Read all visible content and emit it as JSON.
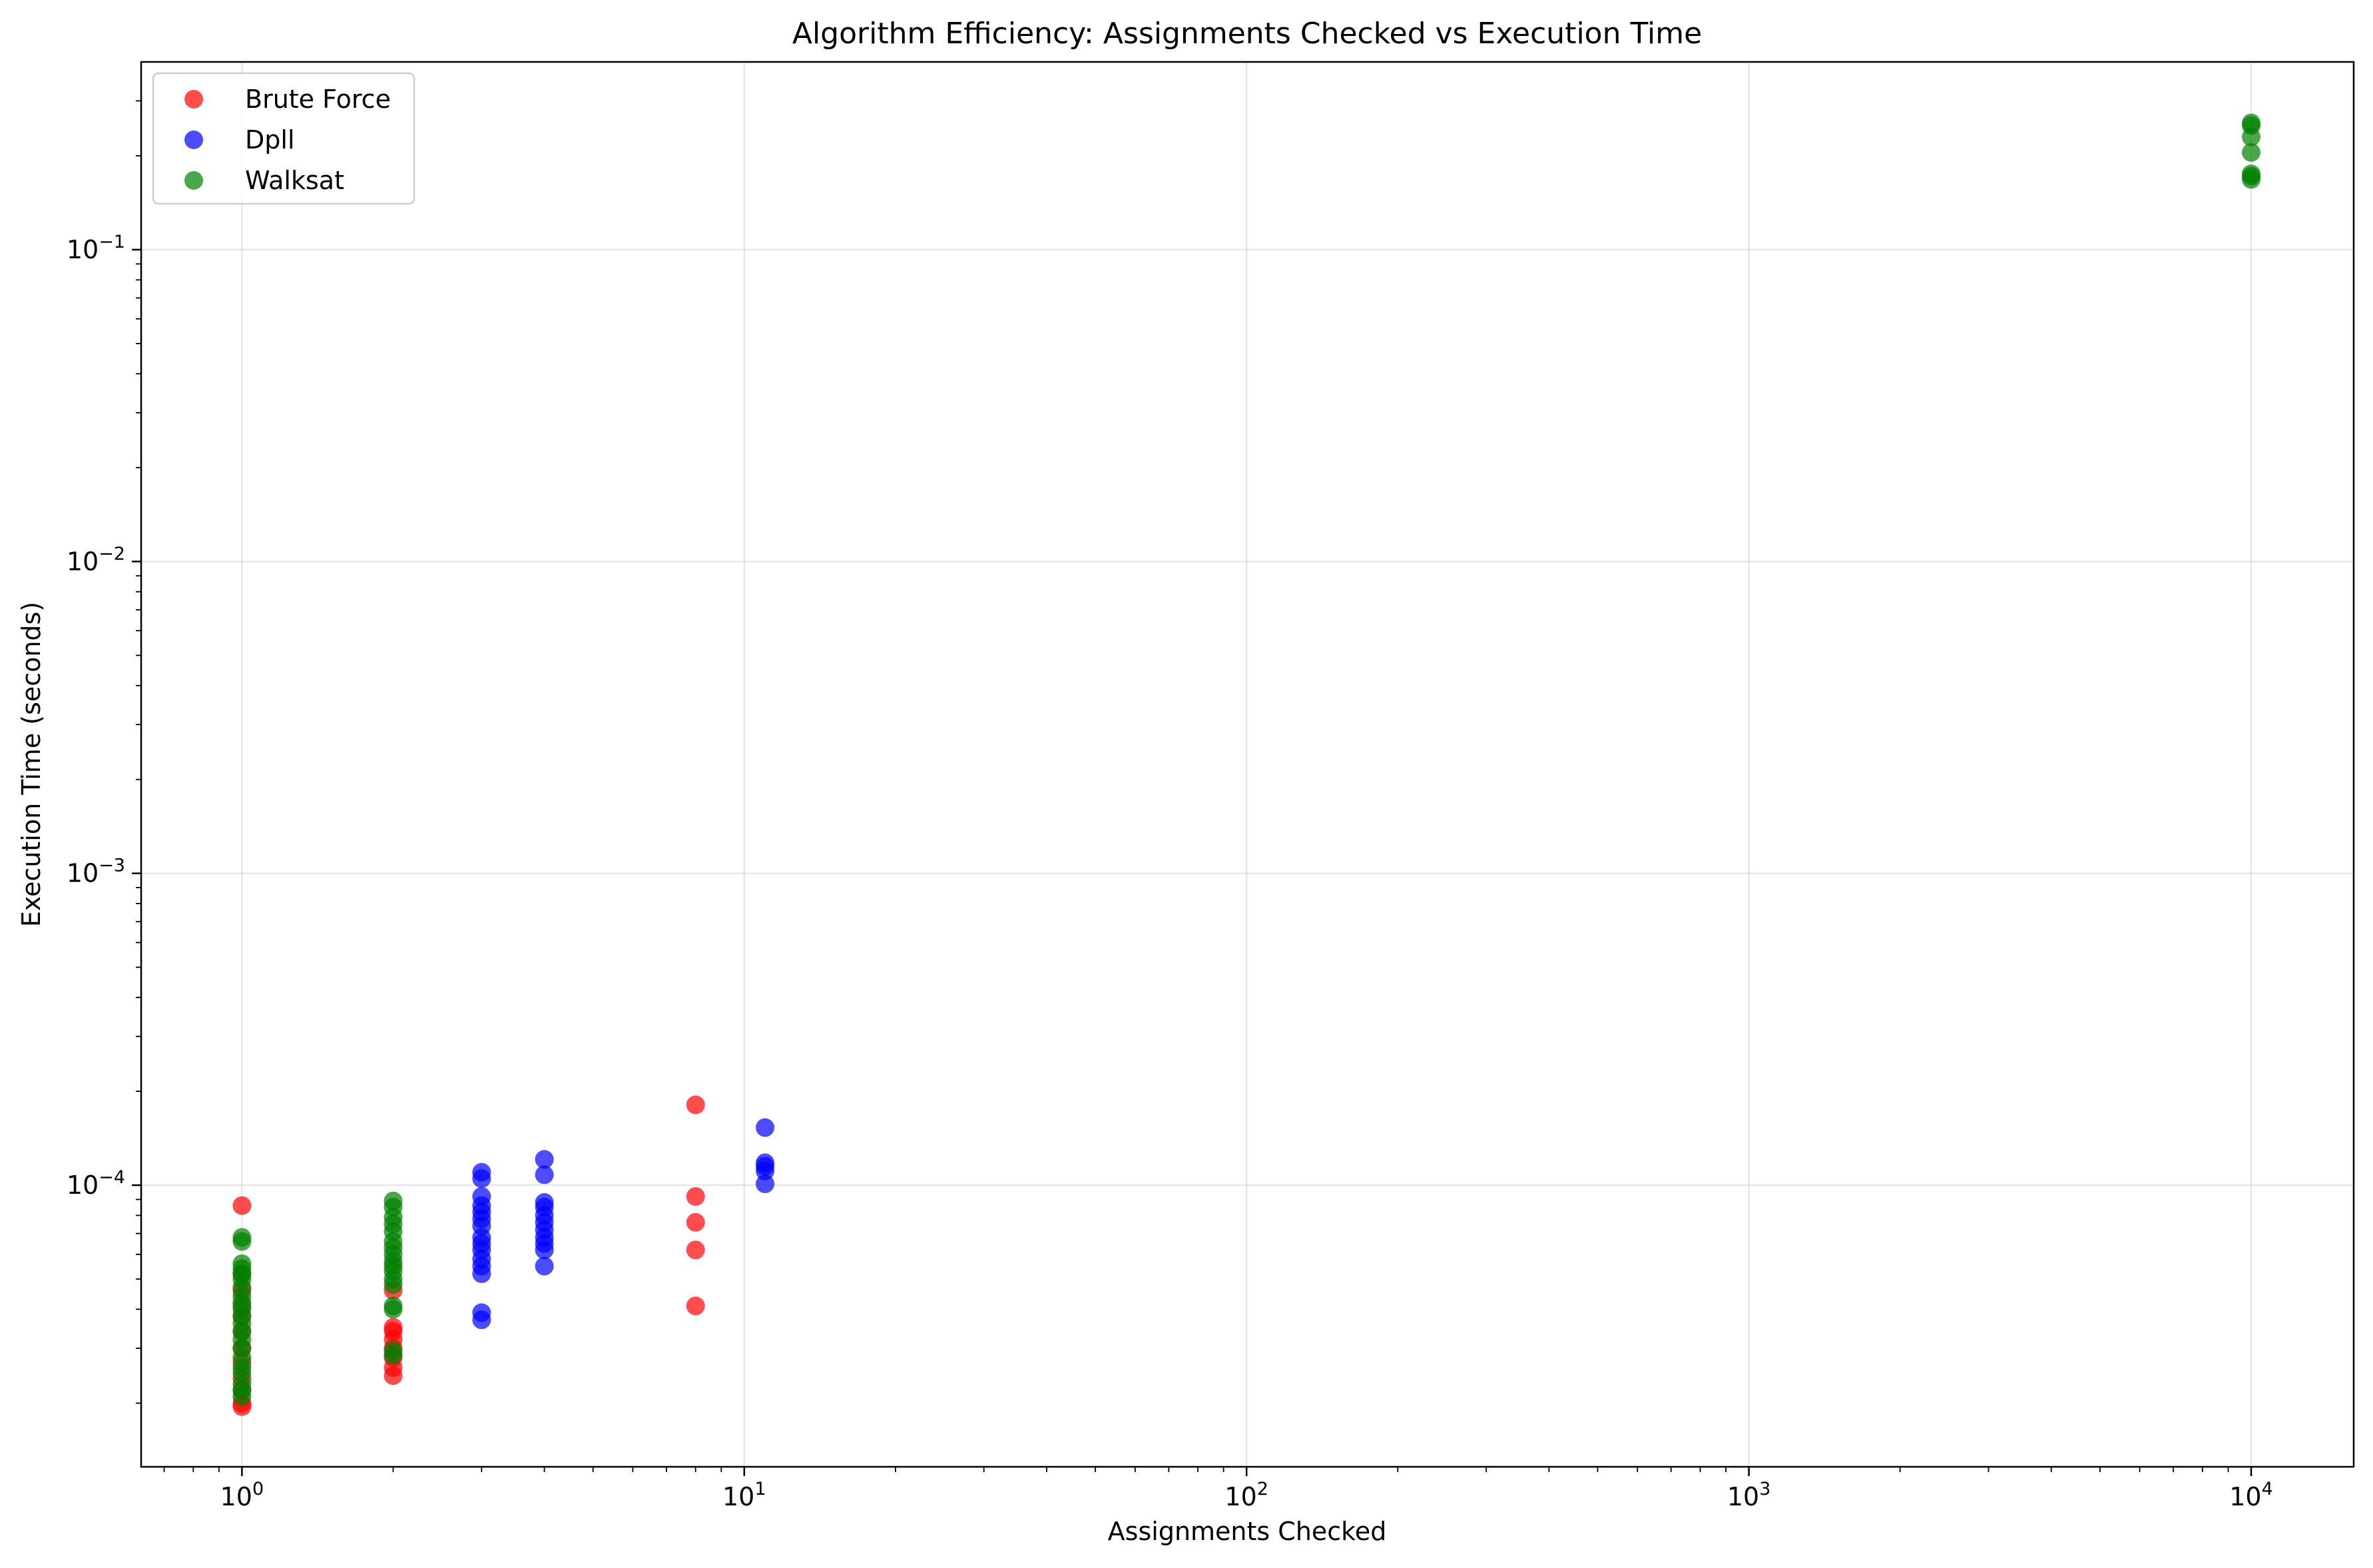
{
  "chart_data": {
    "type": "scatter",
    "title": "Algorithm Efficiency: Assignments Checked vs Execution Time",
    "xlabel": "Assignments Checked",
    "ylabel": "Execution Time (seconds)",
    "xscale": "log",
    "yscale": "log",
    "xlim": [
      0.63,
      16000
    ],
    "ylim": [
      1.25e-05,
      0.4
    ],
    "grid": true,
    "legend_position": "top-left",
    "x_ticks": [
      {
        "value": 1,
        "base": "10",
        "exp": "0"
      },
      {
        "value": 10,
        "base": "10",
        "exp": "1"
      },
      {
        "value": 100,
        "base": "10",
        "exp": "2"
      },
      {
        "value": 1000,
        "base": "10",
        "exp": "3"
      },
      {
        "value": 10000,
        "base": "10",
        "exp": "4"
      }
    ],
    "y_ticks": [
      {
        "value": 0.0001,
        "base": "10",
        "exp": "−4"
      },
      {
        "value": 0.001,
        "base": "10",
        "exp": "−3"
      },
      {
        "value": 0.01,
        "base": "10",
        "exp": "−2"
      },
      {
        "value": 0.1,
        "base": "10",
        "exp": "−1"
      }
    ],
    "series": [
      {
        "name": "Brute Force",
        "color": "#ff0000",
        "points": [
          {
            "x": 1,
            "y": 8.6e-05
          },
          {
            "x": 1,
            "y": 5.2e-05
          },
          {
            "x": 1,
            "y": 4.6e-05
          },
          {
            "x": 1,
            "y": 4.1e-05
          },
          {
            "x": 1,
            "y": 3.8e-05
          },
          {
            "x": 1,
            "y": 3.4e-05
          },
          {
            "x": 1,
            "y": 3e-05
          },
          {
            "x": 1,
            "y": 2.7e-05
          },
          {
            "x": 1,
            "y": 2.4e-05
          },
          {
            "x": 1,
            "y": 2.2e-05
          },
          {
            "x": 1,
            "y": 2e-05
          },
          {
            "x": 1,
            "y": 1.95e-05
          },
          {
            "x": 2,
            "y": 4.6e-05
          },
          {
            "x": 2,
            "y": 3.5e-05
          },
          {
            "x": 2,
            "y": 3.4e-05
          },
          {
            "x": 2,
            "y": 3.2e-05
          },
          {
            "x": 2,
            "y": 3e-05
          },
          {
            "x": 2,
            "y": 2.8e-05
          },
          {
            "x": 2,
            "y": 2.6e-05
          },
          {
            "x": 2,
            "y": 2.45e-05
          },
          {
            "x": 8,
            "y": 0.000181
          },
          {
            "x": 8,
            "y": 9.2e-05
          },
          {
            "x": 8,
            "y": 7.6e-05
          },
          {
            "x": 8,
            "y": 6.2e-05
          },
          {
            "x": 8,
            "y": 4.1e-05
          }
        ]
      },
      {
        "name": "Dpll",
        "color": "#0000ff",
        "points": [
          {
            "x": 3,
            "y": 0.00011
          },
          {
            "x": 3,
            "y": 0.000105
          },
          {
            "x": 3,
            "y": 9.2e-05
          },
          {
            "x": 3,
            "y": 8.6e-05
          },
          {
            "x": 3,
            "y": 8.2e-05
          },
          {
            "x": 3,
            "y": 7.8e-05
          },
          {
            "x": 3,
            "y": 7.4e-05
          },
          {
            "x": 3,
            "y": 6.8e-05
          },
          {
            "x": 3,
            "y": 6.5e-05
          },
          {
            "x": 3,
            "y": 6.2e-05
          },
          {
            "x": 3,
            "y": 5.8e-05
          },
          {
            "x": 3,
            "y": 5.5e-05
          },
          {
            "x": 3,
            "y": 5.2e-05
          },
          {
            "x": 3,
            "y": 3.9e-05
          },
          {
            "x": 3,
            "y": 3.7e-05
          },
          {
            "x": 4,
            "y": 0.000121
          },
          {
            "x": 4,
            "y": 0.000108
          },
          {
            "x": 4,
            "y": 8.8e-05
          },
          {
            "x": 4,
            "y": 8.5e-05
          },
          {
            "x": 4,
            "y": 8e-05
          },
          {
            "x": 4,
            "y": 7.6e-05
          },
          {
            "x": 4,
            "y": 7.2e-05
          },
          {
            "x": 4,
            "y": 6.8e-05
          },
          {
            "x": 4,
            "y": 6.5e-05
          },
          {
            "x": 4,
            "y": 6.2e-05
          },
          {
            "x": 4,
            "y": 5.5e-05
          },
          {
            "x": 11,
            "y": 0.000153
          },
          {
            "x": 11,
            "y": 0.000118
          },
          {
            "x": 11,
            "y": 0.000115
          },
          {
            "x": 11,
            "y": 0.000111
          },
          {
            "x": 11,
            "y": 0.000101
          }
        ]
      },
      {
        "name": "Walksat",
        "color": "#008000",
        "points": [
          {
            "x": 1,
            "y": 6.8e-05
          },
          {
            "x": 1,
            "y": 6.6e-05
          },
          {
            "x": 1,
            "y": 5.6e-05
          },
          {
            "x": 1,
            "y": 5.4e-05
          },
          {
            "x": 1,
            "y": 5.2e-05
          },
          {
            "x": 1,
            "y": 5e-05
          },
          {
            "x": 1,
            "y": 4.7e-05
          },
          {
            "x": 1,
            "y": 4.4e-05
          },
          {
            "x": 1,
            "y": 4.2e-05
          },
          {
            "x": 1,
            "y": 4e-05
          },
          {
            "x": 1,
            "y": 3.8e-05
          },
          {
            "x": 1,
            "y": 3.6e-05
          },
          {
            "x": 1,
            "y": 3.4e-05
          },
          {
            "x": 1,
            "y": 3.2e-05
          },
          {
            "x": 1,
            "y": 3e-05
          },
          {
            "x": 1,
            "y": 2.8e-05
          },
          {
            "x": 1,
            "y": 2.6e-05
          },
          {
            "x": 1,
            "y": 2.5e-05
          },
          {
            "x": 1,
            "y": 2.3e-05
          },
          {
            "x": 1,
            "y": 2.2e-05
          },
          {
            "x": 1,
            "y": 2.1e-05
          },
          {
            "x": 2,
            "y": 8.9e-05
          },
          {
            "x": 2,
            "y": 8.5e-05
          },
          {
            "x": 2,
            "y": 7.9e-05
          },
          {
            "x": 2,
            "y": 7.5e-05
          },
          {
            "x": 2,
            "y": 7.1e-05
          },
          {
            "x": 2,
            "y": 6.6e-05
          },
          {
            "x": 2,
            "y": 6.3e-05
          },
          {
            "x": 2,
            "y": 6e-05
          },
          {
            "x": 2,
            "y": 5.7e-05
          },
          {
            "x": 2,
            "y": 5.5e-05
          },
          {
            "x": 2,
            "y": 5.3e-05
          },
          {
            "x": 2,
            "y": 5e-05
          },
          {
            "x": 2,
            "y": 4.8e-05
          },
          {
            "x": 2,
            "y": 4.1e-05
          },
          {
            "x": 2,
            "y": 4e-05
          },
          {
            "x": 2,
            "y": 2.95e-05
          },
          {
            "x": 2,
            "y": 2.85e-05
          },
          {
            "x": 10000,
            "y": 0.255
          },
          {
            "x": 10000,
            "y": 0.25
          },
          {
            "x": 10000,
            "y": 0.23
          },
          {
            "x": 10000,
            "y": 0.205
          },
          {
            "x": 10000,
            "y": 0.175
          },
          {
            "x": 10000,
            "y": 0.172
          },
          {
            "x": 10000,
            "y": 0.168
          }
        ]
      }
    ]
  }
}
